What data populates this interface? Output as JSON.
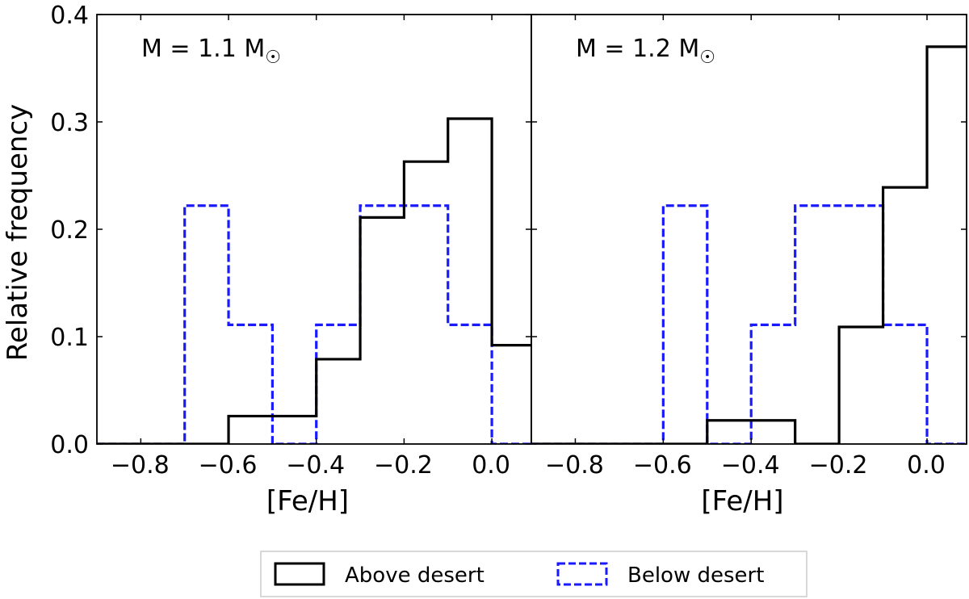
{
  "chart_data": {
    "type": "histogram",
    "ylabel": "Relative frequency",
    "shared_y": true,
    "ylim": [
      0,
      0.4
    ],
    "yticks": [
      0.0,
      0.1,
      0.2,
      0.3,
      0.4
    ],
    "ytick_labels": [
      "0.0",
      "0.1",
      "0.2",
      "0.3",
      "0.4"
    ],
    "legend": {
      "placement": "bottom-center",
      "entries": [
        {
          "label": "Above desert",
          "color": "#000000",
          "style": "solid"
        },
        {
          "label": "Below desert",
          "color": "#1a1aff",
          "style": "dashed"
        }
      ]
    },
    "panels": [
      {
        "label": "M = 1.1 M☉",
        "label_text": "M = 1.1 M",
        "label_symbol": "☉",
        "xlabel": "[Fe/H]",
        "xlim": [
          -0.9,
          0.09
        ],
        "xticks": [
          -0.8,
          -0.6,
          -0.4,
          -0.2,
          0.0
        ],
        "xtick_labels": [
          "−0.8",
          "−0.6",
          "−0.4",
          "−0.2",
          "0.0"
        ],
        "bin_edges": [
          -0.9,
          -0.7,
          -0.6,
          -0.5,
          -0.4,
          -0.3,
          -0.2,
          -0.1,
          0.0,
          0.1
        ],
        "series": [
          {
            "name": "Above desert",
            "color": "#000000",
            "style": "solid",
            "values": [
              0.0,
              0.0,
              0.026,
              0.026,
              0.079,
              0.211,
              0.263,
              0.303,
              0.092
            ]
          },
          {
            "name": "Below desert",
            "color": "#1a1aff",
            "style": "dashed",
            "values": [
              0.0,
              0.222,
              0.111,
              0.0,
              0.111,
              0.222,
              0.222,
              0.111,
              0.0
            ]
          }
        ]
      },
      {
        "label": "M = 1.2 M☉",
        "label_text": "M = 1.2 M",
        "label_symbol": "☉",
        "xlabel": "[Fe/H]",
        "xlim": [
          -0.9,
          0.09
        ],
        "xticks": [
          -0.8,
          -0.6,
          -0.4,
          -0.2,
          0.0
        ],
        "xtick_labels": [
          "−0.8",
          "−0.6",
          "−0.4",
          "−0.2",
          "0.0"
        ],
        "bin_edges": [
          -0.9,
          -0.6,
          -0.5,
          -0.4,
          -0.3,
          -0.2,
          -0.1,
          0.0,
          0.1
        ],
        "series": [
          {
            "name": "Above desert",
            "color": "#000000",
            "style": "solid",
            "values": [
              0.0,
              0.0,
              0.022,
              0.022,
              0.0,
              0.109,
              0.239,
              0.37
            ]
          },
          {
            "name": "Below desert",
            "color": "#1a1aff",
            "style": "dashed",
            "values": [
              0.0,
              0.222,
              0.0,
              0.111,
              0.222,
              0.222,
              0.111,
              0.0
            ]
          }
        ]
      }
    ]
  }
}
